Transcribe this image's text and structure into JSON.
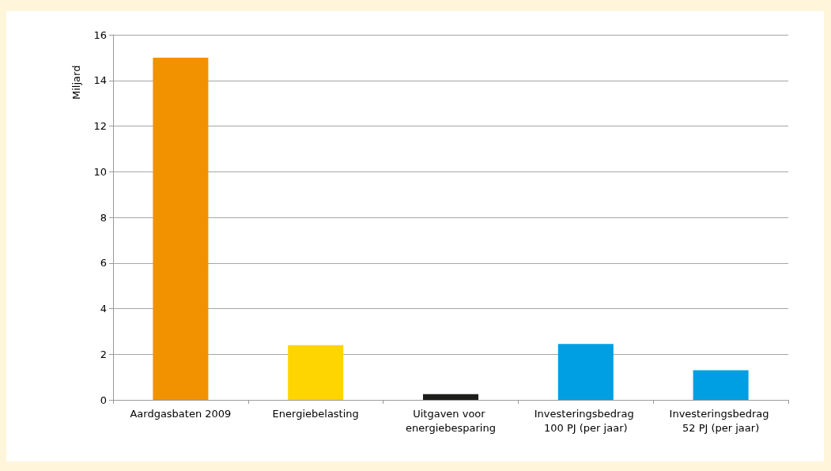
{
  "chart_data": {
    "type": "bar",
    "ylabel": "Miljard",
    "categories": [
      "Aardgasbaten 2009",
      "Energiebelasting",
      "Uitgaven voor energiebesparing",
      "Investeringsbedrag 100 PJ (per jaar)",
      "Investeringsbedrag 52 PJ (per jaar)"
    ],
    "values": [
      15,
      2.4,
      0.25,
      2.45,
      1.3
    ],
    "colors": [
      "#f39200",
      "#ffd500",
      "#1d1d1b",
      "#009fe3",
      "#009fe3"
    ],
    "ylim": [
      0,
      16
    ],
    "yticks": [
      0,
      2,
      4,
      6,
      8,
      10,
      12,
      14,
      16
    ],
    "grid": "y"
  }
}
